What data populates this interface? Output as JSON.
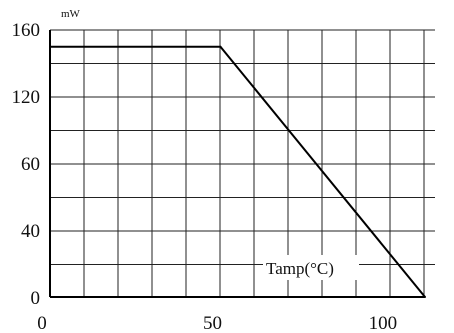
{
  "chart_data": {
    "type": "line",
    "series": [
      {
        "x": [
          0,
          50,
          110
        ],
        "y": [
          150,
          150,
          0
        ]
      }
    ],
    "x_ticks": [
      0,
      50,
      100
    ],
    "x_tick_labels": [
      "0",
      "50",
      "100"
    ],
    "y_tick_labels": [
      "160",
      "120",
      "60",
      "40",
      "0"
    ],
    "y_unit": "mW",
    "annotation": "Tamp(°C)",
    "xlim": [
      0,
      110
    ],
    "ylim": [
      0,
      160
    ],
    "grid": true
  }
}
